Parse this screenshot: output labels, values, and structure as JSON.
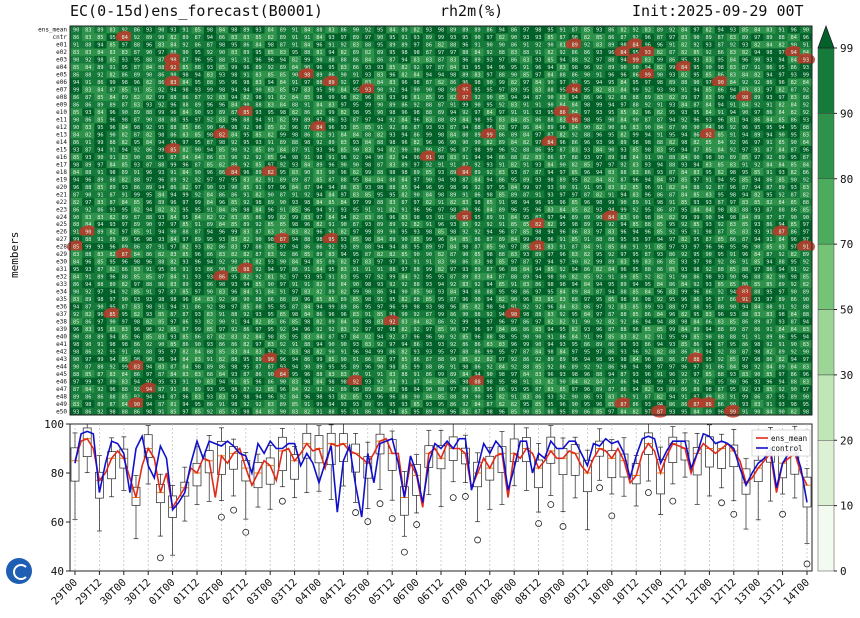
{
  "header": {
    "title_left": "EC(0-15d)ens_forecast(B0001)",
    "title_mid": "rh2m(%)",
    "title_right": "Init:2025-09-29 00T"
  },
  "chart_data": [
    {
      "type": "heatmap",
      "ylabel": "members",
      "rows": [
        "ens_mean",
        "cntr",
        "e01",
        "e02",
        "e03",
        "e04",
        "e05",
        "e06",
        "e07",
        "e08",
        "e09",
        "e10",
        "e11",
        "e12",
        "e13",
        "e14",
        "e15",
        "e16",
        "e17",
        "e18",
        "e19",
        "e20",
        "e21",
        "e22",
        "e23",
        "e24",
        "e25",
        "e26",
        "e27",
        "e28",
        "e29",
        "e30",
        "e31",
        "e32",
        "e33",
        "e34",
        "e35",
        "e36",
        "e37",
        "e38",
        "e39",
        "e40",
        "e41",
        "e42",
        "e43",
        "e44",
        "e45",
        "e46",
        "e47",
        "e48",
        "e49",
        "e50"
      ],
      "columns": 61,
      "cell_value_range": [
        72,
        99
      ],
      "highlight_color": "#c0392b",
      "colorbar": {
        "ticks": [
          "0",
          "10",
          "20",
          "30",
          "50",
          "70",
          "80",
          "90",
          "99"
        ],
        "extend": "max"
      },
      "colormap": [
        "#f3faf0",
        "#dcf1d4",
        "#c0e5b7",
        "#9dd597",
        "#74c376",
        "#4cab5c",
        "#2e924a",
        "#157a3a",
        "#016129"
      ]
    },
    {
      "type": "line",
      "ylim": [
        40,
        100
      ],
      "yticks": [
        "40",
        "60",
        "80",
        "100"
      ],
      "xticks": [
        "29T00",
        "29T12",
        "30T00",
        "30T12",
        "01T00",
        "01T12",
        "02T00",
        "02T12",
        "03T00",
        "03T12",
        "04T00",
        "04T12",
        "05T00",
        "05T12",
        "06T00",
        "06T12",
        "07T00",
        "07T12",
        "08T00",
        "08T12",
        "09T00",
        "09T12",
        "10T00",
        "10T12",
        "11T00",
        "11T12",
        "12T00",
        "12T12",
        "13T00",
        "13T12",
        "14T00"
      ],
      "legend": {
        "placement": "top-right",
        "entries": [
          "ens_mean",
          "control"
        ]
      },
      "series": [
        {
          "name": "ens_mean",
          "color": "#e02a1a",
          "values": [
            85,
            93,
            94,
            90,
            77,
            80,
            86,
            89,
            86,
            78,
            70,
            83,
            90,
            86,
            72,
            80,
            66,
            70,
            74,
            82,
            80,
            86,
            85,
            70,
            87,
            84,
            88,
            90,
            82,
            75,
            80,
            85,
            83,
            77,
            89,
            90,
            85,
            88,
            92,
            89,
            90,
            82,
            92,
            91,
            92,
            89,
            88,
            86,
            84,
            88,
            93,
            94,
            88,
            88,
            70,
            84,
            79,
            66,
            88,
            90,
            86,
            92,
            90,
            90,
            88,
            74,
            80,
            86,
            82,
            87,
            88,
            70,
            88,
            86,
            90,
            88,
            82,
            85,
            89,
            86,
            86,
            89,
            88,
            83,
            80,
            86,
            90,
            89,
            86,
            90,
            85,
            76,
            79,
            88,
            92,
            89,
            80,
            87,
            92,
            91,
            90,
            80,
            88,
            92,
            90,
            88,
            90,
            92,
            89,
            85,
            76,
            78,
            82,
            85,
            88,
            72,
            84,
            86,
            88,
            80,
            75
          ]
        },
        {
          "name": "control",
          "color": "#1010cc",
          "values": [
            84,
            96,
            97,
            96,
            72,
            84,
            93,
            92,
            88,
            72,
            90,
            95,
            83,
            78,
            91,
            86,
            65,
            68,
            72,
            84,
            93,
            86,
            93,
            92,
            91,
            93,
            91,
            88,
            87,
            80,
            92,
            88,
            93,
            90,
            90,
            92,
            92,
            83,
            88,
            84,
            76,
            84,
            91,
            64,
            85,
            91,
            75,
            62,
            88,
            76,
            92,
            93,
            94,
            84,
            70,
            87,
            80,
            68,
            84,
            92,
            90,
            93,
            90,
            94,
            94,
            73,
            82,
            92,
            88,
            93,
            90,
            73,
            82,
            93,
            93,
            80,
            88,
            86,
            93,
            90,
            90,
            93,
            93,
            88,
            83,
            92,
            91,
            94,
            92,
            93,
            88,
            78,
            87,
            94,
            95,
            94,
            84,
            89,
            93,
            93,
            93,
            82,
            88,
            96,
            95,
            92,
            93,
            92,
            90,
            82,
            75,
            80,
            84,
            86,
            90,
            74,
            84,
            88,
            90,
            82,
            68
          ]
        }
      ]
    }
  ]
}
